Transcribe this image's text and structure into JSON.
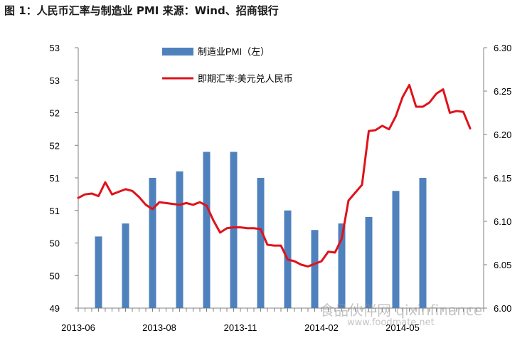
{
  "figure": {
    "title": "图 1：人民币汇率与制造业 PMI    来源：Wind、招商银行"
  },
  "watermark": {
    "text": "食品伙伴网 qixinfinance",
    "url": "www.foodmate.net"
  },
  "chart_data": {
    "type": "bar+line",
    "title": "图 1：人民币汇率与制造业 PMI    来源：Wind、招商银行",
    "legend_placement": "top-center",
    "grid": false,
    "left_axis": {
      "ylim": [
        49.0,
        53.0
      ],
      "tick_labels": [
        "49",
        "50",
        "50",
        "51",
        "51",
        "52",
        "52",
        "53",
        "53"
      ]
    },
    "right_axis": {
      "ylim": [
        6.0,
        6.3
      ],
      "tick_labels": [
        "6.00",
        "6.05",
        "6.10",
        "6.15",
        "6.20",
        "6.25",
        "6.30"
      ]
    },
    "x_tick_labels": [
      "2013-06",
      "2013-08",
      "2013-11",
      "2014-02",
      "2014-05"
    ],
    "series": [
      {
        "name": "制造业PMI（左）",
        "type": "bar",
        "axis": "left",
        "color": "#4f81bd",
        "values": [
          50.1,
          50.3,
          51.0,
          51.1,
          51.4,
          51.4,
          51.0,
          50.5,
          50.2,
          50.3,
          50.4,
          50.8,
          51.0
        ],
        "x_index": [
          3,
          7,
          11,
          15,
          19,
          23,
          27,
          31,
          35,
          39,
          43,
          47,
          51
        ]
      },
      {
        "name": "即期汇率:美元兑人民币",
        "type": "line",
        "axis": "right",
        "color": "#e0121b",
        "values": [
          6.127,
          6.131,
          6.132,
          6.129,
          6.145,
          6.131,
          6.134,
          6.137,
          6.135,
          6.128,
          6.119,
          6.114,
          6.122,
          6.121,
          6.12,
          6.119,
          6.121,
          6.119,
          6.122,
          6.118,
          6.101,
          6.087,
          6.092,
          6.093,
          6.093,
          6.092,
          6.092,
          6.091,
          6.073,
          6.072,
          6.072,
          6.056,
          6.054,
          6.05,
          6.048,
          6.051,
          6.054,
          6.065,
          6.064,
          6.08,
          6.124,
          6.133,
          6.142,
          6.204,
          6.205,
          6.21,
          6.206,
          6.221,
          6.243,
          6.257,
          6.232,
          6.232,
          6.237,
          6.247,
          6.252,
          6.225,
          6.227,
          6.226,
          6.207
        ]
      }
    ]
  }
}
